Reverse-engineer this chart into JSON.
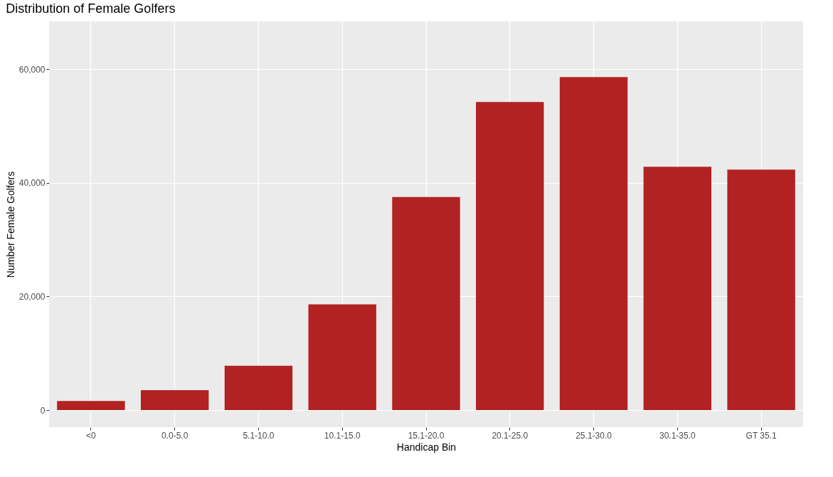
{
  "chart_data": {
    "type": "bar",
    "title": "Distribution of Female Golfers",
    "xlabel": "Handicap Bin",
    "ylabel": "Number Female Golfers",
    "categories": [
      "<0",
      "0.0-5.0",
      "5.1-10.0",
      "10.1-15.0",
      "15.1-20.0",
      "20.1-25.0",
      "25.1-30.0",
      "30.1-35.0",
      "GT 35.1"
    ],
    "values": [
      1600,
      3500,
      7800,
      18600,
      37500,
      54200,
      58600,
      42800,
      42300
    ],
    "color": "#b22222",
    "ylim": [
      -3000,
      68400
    ],
    "yticks": [
      0,
      {
        "value": 20000,
        "label": "20,000"
      },
      {
        "value": 40000,
        "label": "40,000"
      },
      {
        "value": 60000,
        "label": "60,000"
      }
    ],
    "grid": true
  }
}
